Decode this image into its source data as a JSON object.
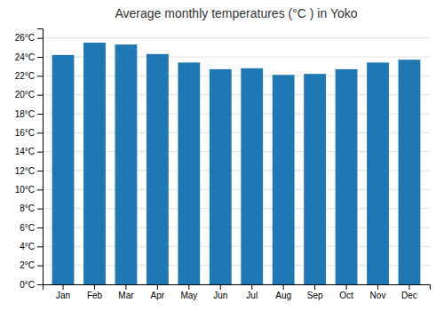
{
  "chart_data": {
    "type": "bar",
    "title": "Average monthly temperatures (°C ) in Yoko",
    "categories": [
      "Jan",
      "Feb",
      "Mar",
      "Apr",
      "May",
      "Jun",
      "Jul",
      "Aug",
      "Sep",
      "Oct",
      "Nov",
      "Dec"
    ],
    "values": [
      24.2,
      25.5,
      25.3,
      24.3,
      23.4,
      22.7,
      22.8,
      22.1,
      22.2,
      22.7,
      23.4,
      23.7
    ],
    "ylim": [
      0,
      27
    ],
    "yticks": [
      {
        "value": 0,
        "label": "0°C"
      },
      {
        "value": 2,
        "label": "2°C"
      },
      {
        "value": 4,
        "label": "4°C"
      },
      {
        "value": 6,
        "label": "6°C"
      },
      {
        "value": 8,
        "label": "8°C"
      },
      {
        "value": 10,
        "label": "10°C"
      },
      {
        "value": 12,
        "label": "12°C"
      },
      {
        "value": 14,
        "label": "14°C"
      },
      {
        "value": 16,
        "label": "16°C"
      },
      {
        "value": 18,
        "label": "18°C"
      },
      {
        "value": 20,
        "label": "20°C"
      },
      {
        "value": 22,
        "label": "22°C"
      },
      {
        "value": 24,
        "label": "24°C"
      },
      {
        "value": 26,
        "label": "26°C"
      }
    ],
    "grid": true
  }
}
